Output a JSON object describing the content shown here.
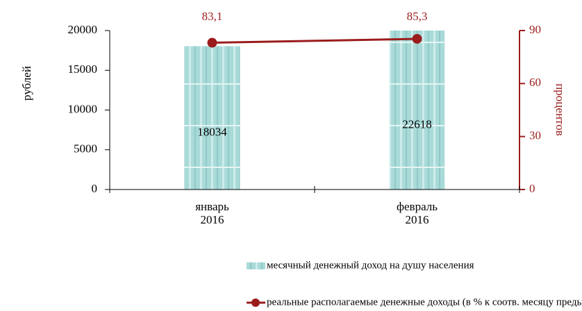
{
  "chart_data": {
    "type": "bar",
    "categories": [
      "январь\n2016",
      "февраль\n2016"
    ],
    "ylabel": "рублей",
    "y2label": "процентов",
    "ylim": [
      0,
      20000
    ],
    "yticks": [
      0,
      5000,
      10000,
      15000,
      20000
    ],
    "y2lim": [
      0,
      90
    ],
    "y2ticks": [
      0,
      30,
      60,
      90
    ],
    "series": [
      {
        "name": "месячный денежный доход на душу населения",
        "type": "bar",
        "color": "#a9dad8",
        "values": [
          18034,
          22618
        ]
      },
      {
        "name": "реальные располагаемые  денежные доходы (в % к соотв. месяцу предыдущего года)",
        "type": "line",
        "axis": "y2",
        "color": "#9b1c1c",
        "values": [
          83.1,
          85.3
        ],
        "value_labels": [
          "83,1",
          "85,3"
        ]
      }
    ]
  }
}
